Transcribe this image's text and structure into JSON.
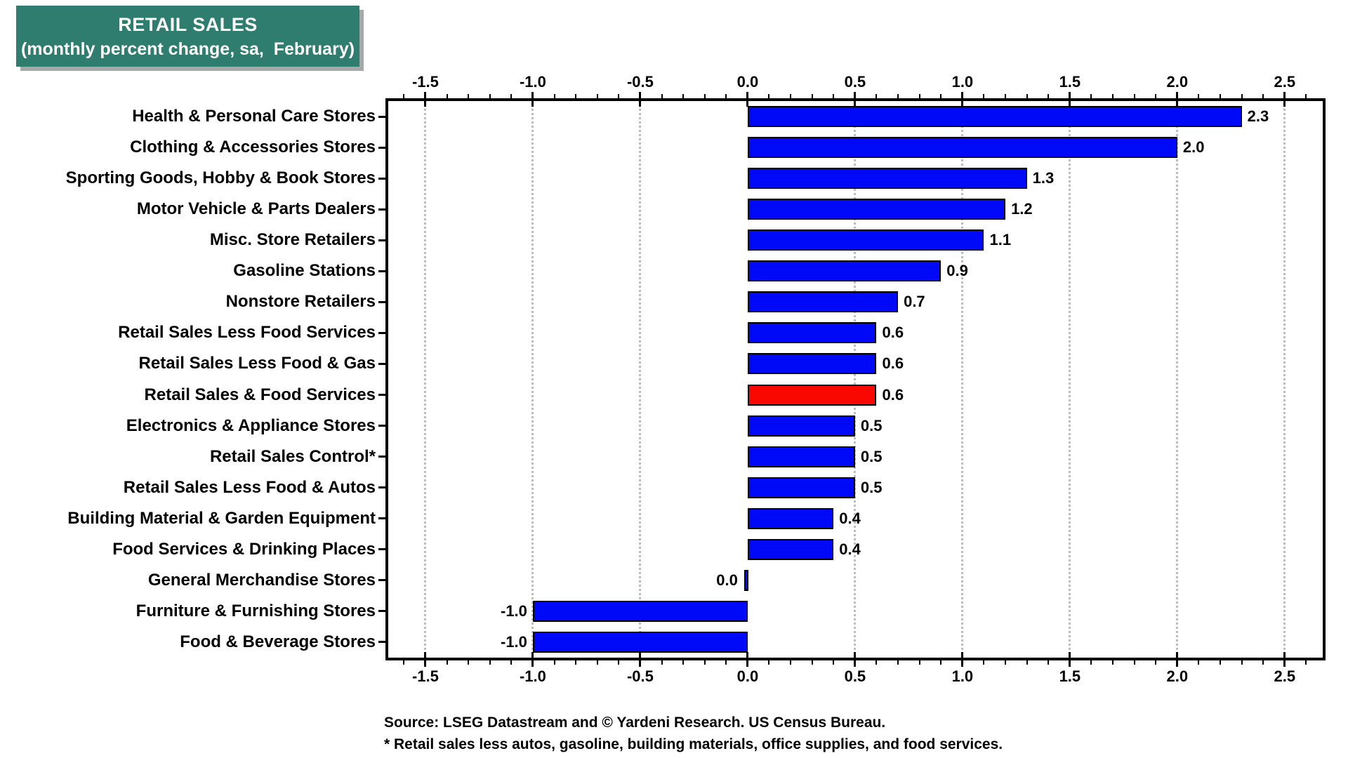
{
  "title": {
    "line1": "RETAIL SALES",
    "line2": "(monthly percent change, sa,  February)"
  },
  "chart_data": {
    "type": "bar",
    "orientation": "horizontal",
    "title": "RETAIL SALES (monthly percent change, sa, February)",
    "categories": [
      "Health & Personal Care Stores",
      "Clothing & Accessories Stores",
      "Sporting Goods, Hobby & Book Stores",
      "Motor Vehicle & Parts Dealers",
      "Misc. Store Retailers",
      "Gasoline Stations",
      "Nonstore Retailers",
      "Retail Sales Less Food Services",
      "Retail Sales Less Food & Gas",
      "Retail Sales & Food Services",
      "Electronics & Appliance Stores",
      "Retail Sales Control*",
      "Retail Sales Less Food & Autos",
      "Building Material & Garden Equipment",
      "Food Services & Drinking Places",
      "General Merchandise Stores",
      "Furniture & Furnishing Stores",
      "Food & Beverage Stores"
    ],
    "values": [
      2.3,
      2.0,
      1.3,
      1.2,
      1.1,
      0.9,
      0.7,
      0.6,
      0.6,
      0.6,
      0.5,
      0.5,
      0.5,
      0.4,
      0.4,
      0.0,
      -1.0,
      -1.0
    ],
    "value_labels": [
      "2.3",
      "2.0",
      "1.3",
      "1.2",
      "1.1",
      "0.9",
      "0.7",
      "0.6",
      "0.6",
      "0.6",
      "0.5",
      "0.5",
      "0.5",
      "0.4",
      "0.4",
      "0.0",
      "-1.0",
      "-1.0"
    ],
    "highlight_index": 9,
    "highlight_category": "Retail Sales & Food Services",
    "xlim": [
      -1.673,
      2.677
    ],
    "ticks": [
      -1.5,
      -1.0,
      -0.5,
      0.0,
      0.5,
      1.0,
      1.5,
      2.0,
      2.5
    ],
    "tick_labels": [
      "-1.5",
      "-1.0",
      "-0.5",
      "0.0",
      "0.5",
      "1.0",
      "1.5",
      "2.0",
      "2.5"
    ],
    "minor_tick_step": 0.1,
    "grid": "vertical dotted at 0.5 steps except zero",
    "legend": "none",
    "axis_label_position": "top and bottom"
  },
  "colors": {
    "bar_blue": "#0008F8",
    "bar_red": "#F80800",
    "title_bg": "#2F7D6E",
    "title_text": "#FFFFFF",
    "grid_gray": "#BDBDBD",
    "axis_black": "#000000"
  },
  "footer": {
    "source": "Source: LSEG Datastream and © Yardeni Research. US Census Bureau.",
    "footnote": "* Retail sales less autos, gasoline, building materials, office supplies, and food services."
  }
}
